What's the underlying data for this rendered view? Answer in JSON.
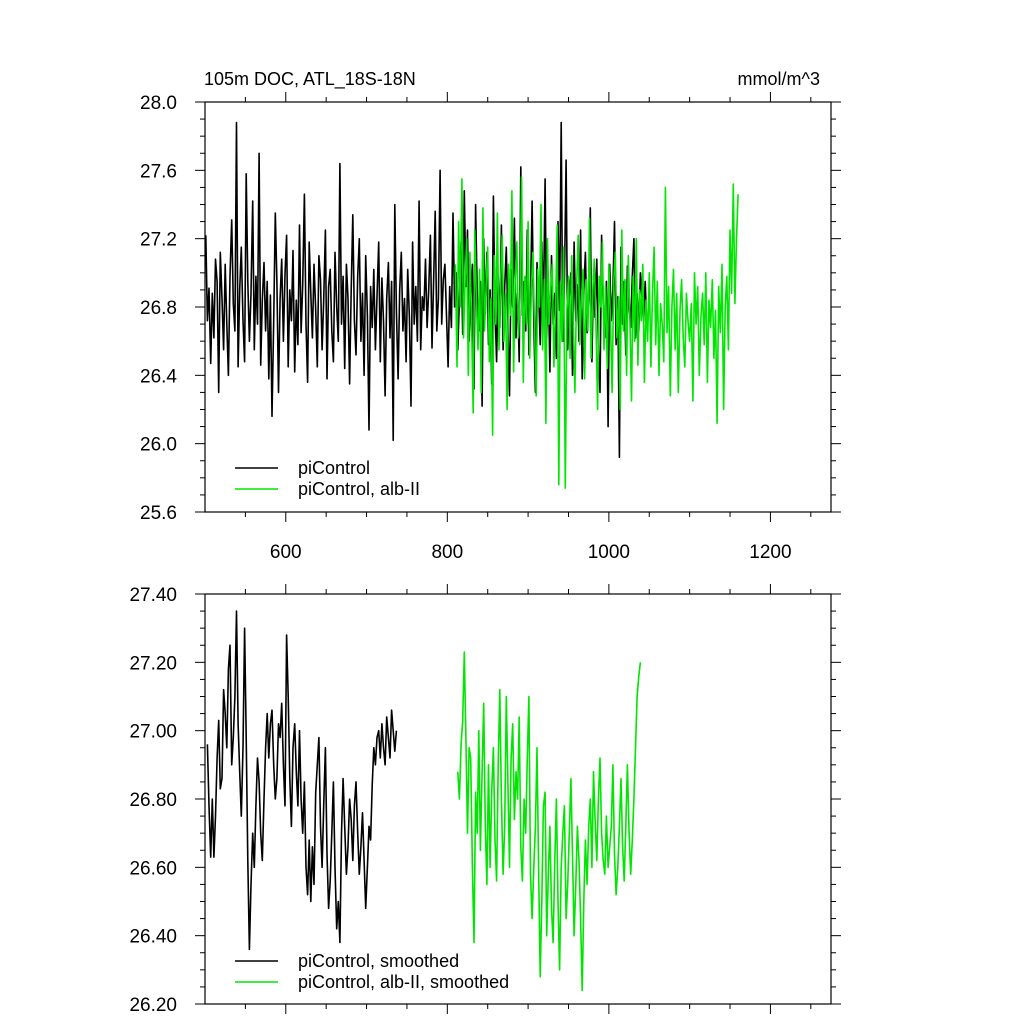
{
  "chart_data": [
    {
      "type": "line",
      "title": "105m DOC, ATL_18S-18N",
      "units": "mmol/m^3",
      "xlabel": "",
      "ylabel": "",
      "xlim": [
        500,
        1275
      ],
      "ylim": [
        25.6,
        28.0
      ],
      "xticks": [
        600,
        800,
        1000,
        1200
      ],
      "xtick_labels": [
        "600",
        "800",
        "1000",
        "1200"
      ],
      "yticks": [
        25.6,
        26.0,
        26.4,
        26.8,
        27.2,
        27.6,
        28.0
      ],
      "ytick_labels": [
        "25.6",
        "26.0",
        "26.4",
        "26.8",
        "27.2",
        "27.6",
        "28.0"
      ],
      "grid": false,
      "legend_position": "bottom-left",
      "series": [
        {
          "name": "piControl",
          "color": "#000000",
          "x_start": 501,
          "x_step": 2,
          "values": [
            27.22,
            26.72,
            26.91,
            26.47,
            26.88,
            26.62,
            27.08,
            26.95,
            26.3,
            27.12,
            26.85,
            26.55,
            27.05,
            26.7,
            26.4,
            26.98,
            27.31,
            26.82,
            26.66,
            27.88,
            26.45,
            26.9,
            27.15,
            26.72,
            26.48,
            27.58,
            26.95,
            26.6,
            26.88,
            27.42,
            26.55,
            26.98,
            26.7,
            27.7,
            26.46,
            26.84,
            27.06,
            26.66,
            26.95,
            26.38,
            26.87,
            26.16,
            26.72,
            27.35,
            26.95,
            26.3,
            26.85,
            27.08,
            26.6,
            26.99,
            27.22,
            26.45,
            26.9,
            26.72,
            27.13,
            26.42,
            26.84,
            26.58,
            27.28,
            26.65,
            26.93,
            27.46,
            26.7,
            26.36,
            27.18,
            26.88,
            26.62,
            27.05,
            26.78,
            26.45,
            27.1,
            26.96,
            26.55,
            26.84,
            27.25,
            26.38,
            26.92,
            27.02,
            26.66,
            26.48,
            27.12,
            26.8,
            26.6,
            27.64,
            26.7,
            26.98,
            26.44,
            27.05,
            26.85,
            26.35,
            26.9,
            27.34,
            26.72,
            26.52,
            26.98,
            27.2,
            26.6,
            26.88,
            26.4,
            27.1,
            26.75,
            26.08,
            26.92,
            26.68,
            27.02,
            26.55,
            26.86,
            27.18,
            26.48,
            26.97,
            26.72,
            26.28,
            26.85,
            27.06,
            26.62,
            26.95,
            26.02,
            27.4,
            26.78,
            26.38,
            26.9,
            27.12,
            26.66,
            26.85,
            26.48,
            27.02,
            26.74,
            26.22,
            27.18,
            26.7,
            26.92,
            26.6,
            27.42,
            26.55,
            26.86,
            26.78,
            27.08,
            26.68,
            26.9,
            27.22,
            26.56,
            26.95,
            27.36,
            26.66,
            26.85,
            27.6,
            26.7,
            26.96,
            27.05,
            26.75,
            26.45,
            26.92,
            26.68,
            27.35,
            26.8,
            27.0,
            26.55,
            26.85,
            27.18,
            26.64,
            27.48,
            26.92,
            27.25,
            26.6,
            26.84,
            27.05,
            26.32,
            27.4,
            26.88,
            26.66,
            26.95,
            26.22,
            27.2,
            26.76,
            27.12,
            26.58,
            26.9,
            26.35,
            27.45,
            26.8,
            26.48,
            26.98,
            26.68,
            27.28,
            26.55,
            26.92,
            27.15,
            26.7,
            26.28,
            27.02,
            26.8,
            27.32,
            26.62,
            26.88,
            26.48,
            27.62,
            26.75,
            26.95,
            26.66,
            27.25,
            26.52,
            26.86,
            27.42,
            26.7,
            26.3,
            27.06,
            26.9,
            26.58,
            27.18,
            26.78,
            27.55,
            26.62,
            26.96,
            26.42,
            27.1,
            26.7,
            26.88,
            26.5,
            27.3,
            26.78,
            27.88,
            26.6,
            26.94,
            27.66,
            26.55,
            26.86,
            27.0,
            26.4,
            27.18,
            26.72,
            26.93,
            26.6,
            27.25,
            26.38,
            26.9,
            27.12,
            26.65,
            26.85,
            27.38,
            26.48,
            26.98,
            26.74,
            27.08,
            26.55,
            26.3,
            27.22,
            26.82,
            26.62,
            26.95,
            26.1,
            27.05,
            26.72,
            26.9,
            27.3,
            26.58,
            26.86,
            25.92,
            27.15,
            26.7,
            26.95,
            26.52,
            27.04,
            26.8,
            26.68,
            26.98,
            27.2,
            26.62,
            26.88,
            26.66,
            27.0,
            26.85,
            26.72,
            26.95,
            26.7
          ]
        },
        {
          "name": "piControl, alb-II",
          "color": "#00e600",
          "x_start": 810,
          "x_step": 2,
          "values": [
            27.05,
            26.45,
            27.3,
            26.8,
            27.55,
            26.62,
            26.95,
            27.2,
            26.4,
            27.12,
            26.7,
            26.18,
            27.25,
            26.84,
            26.55,
            27.02,
            26.3,
            27.38,
            26.66,
            26.92,
            27.15,
            26.48,
            26.85,
            26.05,
            27.1,
            26.7,
            27.35,
            26.55,
            26.95,
            27.22,
            26.6,
            26.88,
            26.2,
            27.05,
            26.75,
            27.48,
            26.42,
            26.95,
            27.18,
            26.62,
            26.85,
            27.56,
            26.36,
            26.98,
            26.7,
            27.3,
            26.5,
            26.9,
            27.12,
            26.66,
            26.28,
            27.02,
            26.8,
            27.4,
            26.55,
            26.96,
            26.12,
            27.2,
            26.7,
            26.9,
            27.05,
            26.45,
            26.82,
            27.28,
            25.76,
            26.95,
            26.6,
            27.15,
            25.74,
            26.78,
            26.98,
            26.5,
            27.1,
            26.7,
            26.3,
            26.92,
            27.22,
            26.58,
            26.84,
            27.02,
            26.38,
            26.96,
            26.66,
            27.32,
            26.5,
            26.88,
            27.08,
            26.72,
            26.2,
            26.98,
            26.8,
            27.18,
            26.55,
            26.92,
            26.44,
            27.05,
            26.7,
            26.3,
            26.95,
            27.12,
            26.62,
            26.86,
            26.2,
            27.25,
            26.66,
            26.96,
            26.4,
            27.1,
            26.74,
            26.25,
            26.98,
            26.6,
            27.2,
            26.46,
            26.9,
            26.72,
            27.05,
            26.36,
            26.84,
            26.6,
            27.0,
            26.45,
            26.88,
            27.15,
            26.58,
            26.95,
            26.4,
            26.82,
            26.7,
            26.48,
            27.5,
            26.65,
            26.92,
            26.28,
            26.8,
            27.02,
            26.55,
            26.88,
            26.3,
            26.78,
            26.96,
            26.62,
            26.45,
            26.88,
            26.72,
            26.6,
            26.82,
            26.25,
            27.0,
            26.7,
            26.92,
            26.4,
            26.75,
            26.88,
            26.58,
            27.0,
            26.36,
            26.84,
            26.68,
            26.96,
            26.5,
            26.78,
            26.12,
            26.92,
            26.65,
            27.05,
            26.2,
            26.8,
            26.98,
            26.55,
            27.25,
            26.88,
            27.52,
            26.82,
            27.2,
            27.46
          ]
        }
      ]
    },
    {
      "type": "line",
      "title": "",
      "xlabel": "",
      "ylabel": "",
      "xlim": [
        500,
        1275
      ],
      "ylim": [
        26.2,
        27.4
      ],
      "xticks": [
        600,
        800,
        1000,
        1200
      ],
      "xtick_labels": [],
      "yticks": [
        26.2,
        26.4,
        26.6,
        26.8,
        27.0,
        27.2,
        27.4
      ],
      "ytick_labels": [
        "26.20",
        "26.40",
        "26.60",
        "26.80",
        "27.00",
        "27.20",
        "27.40"
      ],
      "grid": false,
      "legend_position": "bottom-left",
      "series": [
        {
          "name": "piControl, smoothed",
          "color": "#000000",
          "x_start": 503,
          "x_step": 2,
          "values": [
            26.96,
            26.78,
            26.63,
            26.8,
            26.63,
            26.75,
            26.92,
            27.03,
            26.83,
            26.86,
            27.12,
            27.05,
            26.95,
            27.18,
            27.25,
            26.9,
            26.98,
            27.1,
            27.35,
            27.02,
            26.88,
            26.75,
            26.95,
            27.3,
            26.98,
            26.62,
            26.36,
            26.55,
            26.7,
            26.6,
            26.78,
            26.92,
            26.85,
            26.7,
            26.62,
            26.8,
            26.95,
            27.05,
            26.92,
            27.02,
            27.06,
            26.9,
            26.8,
            26.86,
            27.02,
            26.98,
            27.08,
            26.9,
            26.78,
            27.28,
            27.1,
            26.86,
            26.72,
            26.95,
            27.02,
            26.88,
            26.78,
            27.0,
            26.8,
            26.7,
            26.85,
            26.6,
            26.52,
            26.68,
            26.5,
            26.66,
            26.55,
            26.82,
            26.9,
            26.98,
            26.72,
            26.6,
            26.78,
            26.95,
            26.64,
            26.48,
            26.56,
            26.7,
            26.85,
            26.6,
            26.42,
            26.5,
            26.38,
            26.7,
            26.86,
            26.72,
            26.58,
            26.66,
            26.8,
            26.74,
            26.62,
            26.78,
            26.85,
            26.7,
            26.58,
            26.66,
            26.76,
            26.62,
            26.48,
            26.6,
            26.72,
            26.68,
            26.84,
            26.95,
            26.9,
            26.98,
            27.0,
            26.92,
            27.02,
            26.95,
            26.9,
            27.04,
            26.98,
            26.92,
            27.06,
            27.0,
            26.94,
            27.0
          ]
        },
        {
          "name": "piControl, alb-II, smoothed",
          "color": "#00e600",
          "x_start": 813,
          "x_step": 2,
          "values": [
            26.88,
            26.8,
            26.96,
            27.03,
            27.23,
            26.98,
            26.7,
            26.95,
            26.92,
            26.6,
            26.38,
            26.82,
            26.7,
            27.0,
            26.65,
            26.88,
            27.08,
            26.72,
            26.55,
            26.9,
            26.6,
            26.82,
            26.95,
            26.68,
            26.56,
            26.9,
            27.12,
            26.8,
            26.58,
            26.72,
            27.1,
            26.85,
            26.6,
            26.92,
            27.02,
            26.74,
            26.88,
            26.8,
            27.04,
            26.66,
            26.56,
            26.8,
            26.7,
            26.92,
            27.1,
            26.58,
            26.45,
            26.6,
            26.72,
            26.95,
            26.6,
            26.28,
            26.5,
            26.78,
            26.82,
            26.4,
            26.58,
            26.72,
            26.48,
            26.38,
            26.62,
            26.8,
            26.5,
            26.3,
            26.6,
            26.7,
            26.78,
            26.45,
            26.55,
            26.7,
            26.86,
            26.64,
            26.4,
            26.55,
            26.72,
            26.62,
            26.45,
            26.24,
            26.5,
            26.68,
            26.55,
            26.72,
            26.8,
            26.6,
            26.88,
            26.74,
            26.62,
            26.8,
            26.92,
            26.7,
            26.62,
            26.58,
            26.75,
            26.6,
            26.66,
            26.72,
            26.9,
            26.64,
            26.52,
            26.6,
            26.72,
            26.86,
            26.66,
            26.56,
            26.72,
            26.9,
            26.7,
            26.58,
            26.68,
            26.8,
            26.95,
            27.1,
            27.16,
            27.2
          ]
        }
      ]
    }
  ]
}
